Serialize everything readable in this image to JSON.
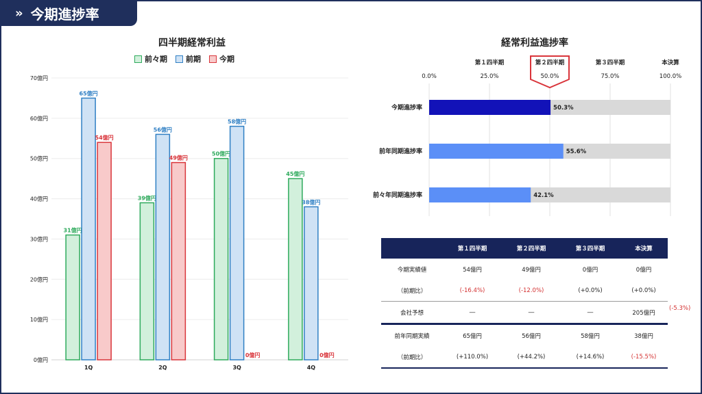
{
  "header": {
    "title": "今期進捗率",
    "chevron": "»"
  },
  "bar_chart_title": "四半期経常利益",
  "progress_chart_title": "経常利益進捗率",
  "legend": [
    {
      "label": "前々期",
      "color": "#2eaa5c",
      "fill": "#d2f0dc"
    },
    {
      "label": "前期",
      "color": "#2f7fc4",
      "fill": "#cfe2f5"
    },
    {
      "label": "今期",
      "color": "#d9343a",
      "fill": "#f8caca"
    }
  ],
  "chart_data": [
    {
      "type": "bar",
      "title": "四半期経常利益",
      "categories": [
        "1Q",
        "2Q",
        "3Q",
        "4Q"
      ],
      "series": [
        {
          "name": "前々期",
          "values": [
            31,
            39,
            50,
            45
          ],
          "labels": [
            "31億円",
            "39億円",
            "50億円",
            "45億円"
          ],
          "color": "#2eaa5c",
          "fill": "#d2f0dc"
        },
        {
          "name": "前期",
          "values": [
            65,
            56,
            58,
            38
          ],
          "labels": [
            "65億円",
            "56億円",
            "58億円",
            "38億円"
          ],
          "color": "#2f7fc4",
          "fill": "#cfe2f5"
        },
        {
          "name": "今期",
          "values": [
            54,
            49,
            0,
            0
          ],
          "labels": [
            "54億円",
            "49億円",
            "0億円",
            "0億円"
          ],
          "color": "#d9343a",
          "fill": "#f8caca"
        }
      ],
      "ylim": [
        0,
        70
      ],
      "yticks": [
        0,
        10,
        20,
        30,
        40,
        50,
        60,
        70
      ],
      "ytick_labels": [
        "0億円",
        "10億円",
        "20億円",
        "30億円",
        "40億円",
        "50億円",
        "60億円",
        "70億円"
      ],
      "grid": true
    },
    {
      "type": "bar",
      "orientation": "horizontal",
      "title": "経常利益進捗率",
      "categories": [
        "今期進捗率",
        "前年同期進捗率",
        "前々年同期進捗率"
      ],
      "values": [
        50.3,
        55.6,
        42.1
      ],
      "value_labels": [
        "50.3%",
        "55.6%",
        "42.1%"
      ],
      "bar_colors": [
        "#1212b8",
        "#5b8ff7",
        "#5b8ff7"
      ],
      "track_color": "#d9d9d9",
      "xlim": [
        0,
        100
      ],
      "xticks": [
        0,
        25,
        50,
        75,
        100
      ],
      "xtick_labels": [
        "0.0%",
        "25.0%",
        "50.0%",
        "75.0%",
        "100.0%"
      ],
      "quarter_labels": [
        "第１四半期",
        "第２四半期",
        "第３四半期",
        "本決算"
      ],
      "highlight_quarter": "第２四半期"
    }
  ],
  "table": {
    "headers": [
      "",
      "第１四半期",
      "第２四半期",
      "第３四半期",
      "本決算"
    ],
    "rows": [
      {
        "label": "今期実績値",
        "cells": [
          "54億円",
          "49億円",
          "0億円",
          "0億円"
        ]
      },
      {
        "label": "（前期比）",
        "cells": [
          "(-16.4%)",
          "(-12.0%)",
          "(+0.0%)",
          "(+0.0%)"
        ]
      },
      {
        "label": "会社予想",
        "cells": [
          "―",
          "―",
          "―",
          "205億円"
        ],
        "outside": "(-5.3%)"
      },
      {
        "label": "前年同期実績",
        "cells": [
          "65億円",
          "56億円",
          "58億円",
          "38億円"
        ]
      },
      {
        "label": "（前期比）",
        "cells": [
          "(+110.0%)",
          "(+44.2%)",
          "(+14.6%)",
          "(-15.5%)"
        ]
      }
    ]
  }
}
